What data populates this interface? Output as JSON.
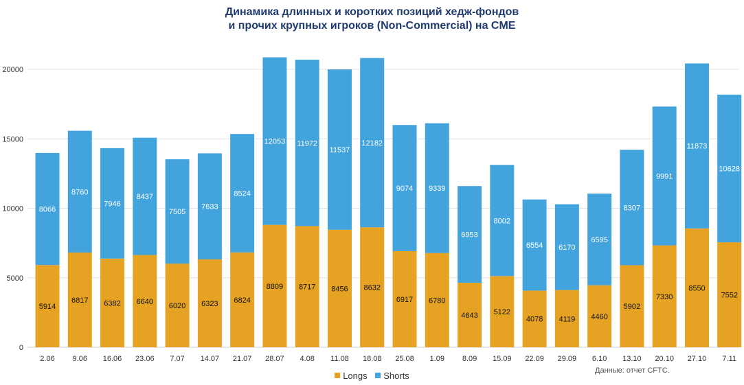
{
  "title_line1": "Динамика длинных и коротких позиций хедж-фондов",
  "title_line2": "и прочих крупных игроков (Non-Commercial) на CME",
  "source": "Данные: отчет CFTC.",
  "colors": {
    "longs": "#e6a323",
    "shorts": "#43a4dd",
    "grid": "#e3e3e3",
    "title": "#1f3a6e"
  },
  "chart_data": {
    "type": "bar",
    "stacked": true,
    "title": "Динамика длинных и коротких позиций хедж-фондов и прочих крупных игроков (Non-Commercial) на CME",
    "xlabel": "",
    "ylabel": "",
    "ylim": [
      0,
      20000
    ],
    "yticks": [
      0,
      5000,
      10000,
      15000,
      20000
    ],
    "grid": true,
    "legend": "bottom",
    "categories": [
      "2.06",
      "9.06",
      "16.06",
      "23.06",
      "7.07",
      "14.07",
      "21.07",
      "28.07",
      "4.08",
      "11.08",
      "18.08",
      "25.08",
      "1.09",
      "8.09",
      "15.09",
      "22.09",
      "29.09",
      "6.10",
      "13.10",
      "20.10",
      "27.10",
      "7.11"
    ],
    "series": [
      {
        "name": "Longs",
        "values": [
          5914,
          6817,
          6382,
          6640,
          6020,
          6323,
          6824,
          8809,
          8717,
          8456,
          8632,
          6917,
          6780,
          4643,
          5122,
          4078,
          4119,
          4460,
          5902,
          7330,
          8550,
          7552
        ]
      },
      {
        "name": "Shorts",
        "values": [
          8066,
          8760,
          7946,
          8437,
          7505,
          7633,
          8524,
          12053,
          11972,
          11537,
          12182,
          9074,
          9339,
          6953,
          8002,
          6554,
          6170,
          6595,
          8307,
          9991,
          11873,
          10628
        ]
      }
    ]
  }
}
